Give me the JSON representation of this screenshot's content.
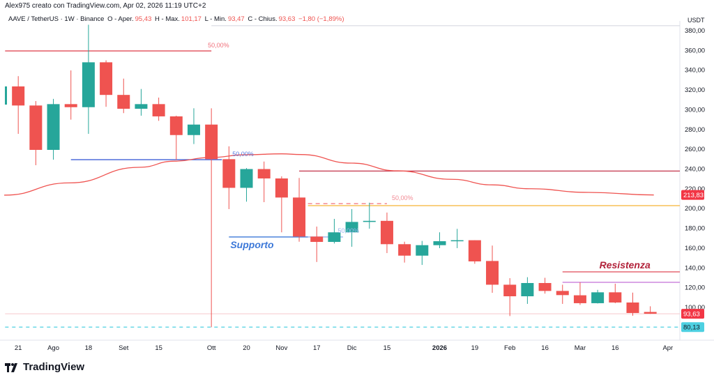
{
  "header": {
    "attribution": "Alex975 creato con TradingView.com, Apr 02, 2026 11:19 UTC+2",
    "symbol": "AAVE / TetherUS · 1W · Binance",
    "open_label": "O - Aper.",
    "open": "95,43",
    "high_label": "H - Max.",
    "high": "101,17",
    "low_label": "L - Min.",
    "low": "93,47",
    "close_label": "C - Chius.",
    "close": "93,63",
    "change": "−1,80 (−1,89%)"
  },
  "logo": {
    "text": "TradingView",
    "icon": "tradingview-logo-icon"
  },
  "colors": {
    "up": "#26a69a",
    "down": "#ef5350",
    "ma": "#ef5350",
    "cyan": "#4dd0e1"
  },
  "chart_data": {
    "type": "candlestick",
    "ylabel": "USDT",
    "ylim": [
      76,
      388
    ],
    "yticks": [
      380,
      360,
      340,
      320,
      300,
      280,
      260,
      240,
      220,
      200,
      180,
      160,
      140,
      120,
      100
    ],
    "ytick_labels": [
      "380,00",
      "360,00",
      "340,00",
      "320,00",
      "300,00",
      "280,00",
      "260,00",
      "240,00",
      "220,00",
      "200,00",
      "180,00",
      "160,00",
      "140,00",
      "120,00",
      "100,00"
    ],
    "xticks": [
      {
        "week": 1,
        "label": "21"
      },
      {
        "week": 3,
        "label": "Ago"
      },
      {
        "week": 5,
        "label": "18"
      },
      {
        "week": 7,
        "label": "Set"
      },
      {
        "week": 9,
        "label": "15"
      },
      {
        "week": 12,
        "label": "Ott"
      },
      {
        "week": 14,
        "label": "20"
      },
      {
        "week": 16,
        "label": "Nov"
      },
      {
        "week": 18,
        "label": "17"
      },
      {
        "week": 20,
        "label": "Dic"
      },
      {
        "week": 22,
        "label": "15"
      },
      {
        "week": 25,
        "label": "2026",
        "bold": true
      },
      {
        "week": 27,
        "label": "19"
      },
      {
        "week": 29,
        "label": "Feb"
      },
      {
        "week": 31,
        "label": "16"
      },
      {
        "week": 33,
        "label": "Mar"
      },
      {
        "week": 35,
        "label": "16"
      },
      {
        "week": 38,
        "label": "Apr"
      }
    ],
    "candles_ohlc": [
      [
        305.2,
        325,
        304,
        323.6
      ],
      [
        323.6,
        334,
        275.6,
        304.3
      ],
      [
        304.3,
        308.8,
        243.9,
        259.4
      ],
      [
        259.4,
        311,
        249.5,
        305.7
      ],
      [
        305.7,
        339.8,
        290,
        302.6
      ],
      [
        302.6,
        386,
        275.6,
        348
      ],
      [
        348,
        350,
        303,
        315
      ],
      [
        315,
        331.5,
        296.6,
        301
      ],
      [
        301,
        321,
        294,
        305.7
      ],
      [
        305.7,
        312.3,
        288.8,
        293.3
      ],
      [
        293.3,
        294,
        249.3,
        274.4
      ],
      [
        274.4,
        301.5,
        265.3,
        285
      ],
      [
        285,
        301.5,
        80,
        250
      ],
      [
        250,
        263,
        199.5,
        221
      ],
      [
        221,
        241,
        207,
        240
      ],
      [
        240,
        247.6,
        206.5,
        230.5
      ],
      [
        230.5,
        232.6,
        176,
        211.2
      ],
      [
        211.2,
        231,
        166.5,
        171.7
      ],
      [
        171.7,
        181.8,
        146,
        166.3
      ],
      [
        166.3,
        189.6,
        164.7,
        176
      ],
      [
        176,
        199.5,
        161.4,
        186.5
      ],
      [
        186.5,
        206,
        179.7,
        187.6
      ],
      [
        187.6,
        196,
        155,
        164
      ],
      [
        164,
        166.5,
        145.4,
        152.4
      ],
      [
        152.4,
        167.3,
        143,
        163
      ],
      [
        163,
        176,
        160,
        167
      ],
      [
        167,
        179.5,
        160,
        168
      ],
      [
        168,
        168,
        144.2,
        146.6
      ],
      [
        147,
        162.6,
        114.8,
        123
      ],
      [
        123,
        129.6,
        91.3,
        111.3
      ],
      [
        111.3,
        130.6,
        103.6,
        124.7
      ],
      [
        124.7,
        130,
        114,
        116.7
      ],
      [
        116.7,
        123,
        103.6,
        112.5
      ],
      [
        112.3,
        125.4,
        102.6,
        104.3
      ],
      [
        104.3,
        117.8,
        104,
        115.3
      ],
      [
        115.3,
        124,
        104.3,
        105
      ],
      [
        105,
        115,
        91.6,
        94.4
      ],
      [
        95.43,
        101.17,
        93.47,
        93.63
      ]
    ],
    "moving_average": [
      [
        0.2,
        213.6
      ],
      [
        3.9,
        226
      ],
      [
        7.9,
        241.8
      ],
      [
        9.9,
        248
      ],
      [
        11.9,
        251.6
      ],
      [
        14,
        254.5
      ],
      [
        16,
        255.4
      ],
      [
        17.1,
        254.7
      ],
      [
        20,
        246
      ],
      [
        22.6,
        238.2
      ],
      [
        25.7,
        229.6
      ],
      [
        28,
        224
      ],
      [
        30.1,
        220.1
      ],
      [
        33.5,
        216.4
      ],
      [
        37.2,
        213.8
      ]
    ],
    "price_labels": [
      {
        "value": 213.83,
        "label": "213,83",
        "color": "#f23645"
      },
      {
        "value": 93.63,
        "label": "93,63",
        "color": "#f23645"
      },
      {
        "value": 80.13,
        "label": "80,13",
        "color": "#4dd0e1"
      }
    ],
    "drawings": [
      {
        "kind": "fib",
        "price": 359.5,
        "from": 0.25,
        "to": 12,
        "color": "#e04b57",
        "label": "50,00%",
        "label_color": "#f06f7a"
      },
      {
        "kind": "fib",
        "price": 249.5,
        "from": 4,
        "to": 12.6,
        "color": "#3f5fd6",
        "label": "50,00%",
        "label_color": "#5b7be0"
      },
      {
        "kind": "hline",
        "price": 238,
        "from": 17,
        "to": 38.7,
        "color": "#c2334a"
      },
      {
        "kind": "fib-dashed",
        "price": 205,
        "from": 17.5,
        "to": 22,
        "color": "#f06f7a",
        "label": "50,00%",
        "label_color": "#f28a94"
      },
      {
        "kind": "hline",
        "price": 203,
        "from": 17.5,
        "to": 38.7,
        "color": "#f5b335"
      },
      {
        "kind": "support",
        "price": 171.3,
        "from": 13,
        "to": 17.5,
        "color": "#3c78d8",
        "label": "Supporto",
        "label_color": "#3c78d8"
      },
      {
        "kind": "fib-faint",
        "price": 171.3,
        "from": 17.5,
        "to": 19.5,
        "color": "#9bb5ee",
        "label": "50,00%",
        "label_color": "#9bb5ee"
      },
      {
        "kind": "resistance",
        "price": 136,
        "from": 32,
        "to": 38.7,
        "color": "#e04b57",
        "label": "Resistenza",
        "label_color": "#b2223a"
      },
      {
        "kind": "hline",
        "price": 125.4,
        "from": 32,
        "to": 38.7,
        "color": "#c36fd6"
      },
      {
        "kind": "hline-light",
        "price": 385,
        "from": 12,
        "to": 38.7,
        "color": "#d1d4dc"
      },
      {
        "kind": "hline-light",
        "price": 93.63,
        "from": 0.25,
        "to": 38.7,
        "color": "#f7c6cb"
      },
      {
        "kind": "cyan-dashed",
        "price": 80.13,
        "from": 0.25,
        "to": 38.7,
        "color": "#4dd0e1"
      }
    ]
  }
}
